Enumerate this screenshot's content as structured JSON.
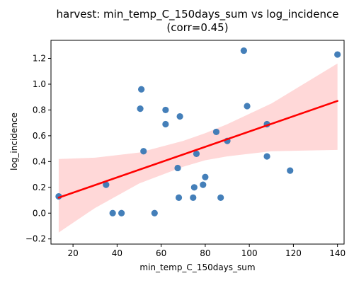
{
  "chart_data": {
    "type": "scatter",
    "title": "harvest: min_temp_C_150days_sum vs log_incidence",
    "subtitle": "(corr=0.45)",
    "xlabel": "min_temp_C_150days_sum",
    "ylabel": "log_incidence",
    "xlim": [
      10,
      143
    ],
    "ylim": [
      -0.24,
      1.34
    ],
    "xticks": [
      20,
      40,
      60,
      80,
      100,
      120,
      140
    ],
    "xtick_labels": [
      "20",
      "40",
      "60",
      "80",
      "100",
      "120",
      "140"
    ],
    "yticks": [
      -0.2,
      0.0,
      0.2,
      0.4,
      0.6,
      0.8,
      1.0,
      1.2
    ],
    "ytick_labels": [
      "−0.2",
      "0.0",
      "0.2",
      "0.4",
      "0.6",
      "0.8",
      "1.0",
      "1.2"
    ],
    "grid": false,
    "colors": {
      "points": "#3a78b5",
      "regression_line": "#ff0000",
      "confidence_band": "#ffd6d6"
    },
    "points": [
      {
        "x": 13.5,
        "y": 0.13
      },
      {
        "x": 35,
        "y": 0.22
      },
      {
        "x": 38,
        "y": 0.0
      },
      {
        "x": 42,
        "y": 0.0
      },
      {
        "x": 50.5,
        "y": 0.81
      },
      {
        "x": 51,
        "y": 0.96
      },
      {
        "x": 52,
        "y": 0.48
      },
      {
        "x": 57,
        "y": 0.0
      },
      {
        "x": 62,
        "y": 0.69
      },
      {
        "x": 62,
        "y": 0.8
      },
      {
        "x": 67.5,
        "y": 0.35
      },
      {
        "x": 68,
        "y": 0.12
      },
      {
        "x": 68.5,
        "y": 0.75
      },
      {
        "x": 74.5,
        "y": 0.12
      },
      {
        "x": 75,
        "y": 0.2
      },
      {
        "x": 76,
        "y": 0.46
      },
      {
        "x": 79,
        "y": 0.22
      },
      {
        "x": 80,
        "y": 0.28
      },
      {
        "x": 85,
        "y": 0.63
      },
      {
        "x": 87,
        "y": 0.12
      },
      {
        "x": 90,
        "y": 0.56
      },
      {
        "x": 97.5,
        "y": 1.26
      },
      {
        "x": 99,
        "y": 0.83
      },
      {
        "x": 108,
        "y": 0.69
      },
      {
        "x": 108,
        "y": 0.44
      },
      {
        "x": 118.5,
        "y": 0.33
      },
      {
        "x": 140,
        "y": 1.23
      }
    ],
    "regression": {
      "x": [
        13.5,
        140
      ],
      "y": [
        0.12,
        0.87
      ]
    },
    "confidence_band": {
      "x": [
        13.5,
        30,
        50,
        70,
        80,
        90,
        110,
        140
      ],
      "lower": [
        -0.15,
        0.04,
        0.23,
        0.36,
        0.41,
        0.44,
        0.48,
        0.49
      ],
      "upper": [
        0.42,
        0.43,
        0.47,
        0.56,
        0.62,
        0.69,
        0.85,
        1.16
      ]
    }
  }
}
